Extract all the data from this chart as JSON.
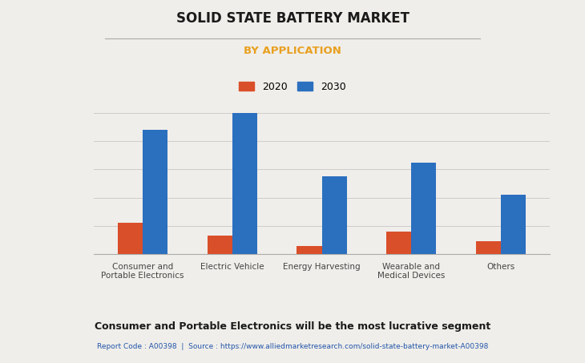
{
  "title": "SOLID STATE BATTERY MARKET",
  "subtitle": "BY APPLICATION",
  "categories": [
    "Consumer and\nPortable Electronics",
    "Electric Vehicle",
    "Energy Harvesting",
    "Wearable and\nMedical Devices",
    "Others"
  ],
  "values_2020": [
    0.22,
    0.13,
    0.06,
    0.16,
    0.09
  ],
  "values_2030": [
    0.88,
    1.0,
    0.55,
    0.65,
    0.42
  ],
  "color_2020": "#d94f2a",
  "color_2030": "#2b6fbf",
  "background_color": "#f0eeea",
  "plot_bg_color": "#f0eeea",
  "title_color": "#1a1a1a",
  "subtitle_color": "#e8a020",
  "legend_labels": [
    "2020",
    "2030"
  ],
  "footer_text": "Consumer and Portable Electronics will be the most lucrative segment",
  "report_text": "Report Code : A00398  |  Source : https://www.alliedmarketresearch.com/solid-state-battery-market-A00398",
  "grid_color": "#cccccc",
  "bar_width": 0.28
}
